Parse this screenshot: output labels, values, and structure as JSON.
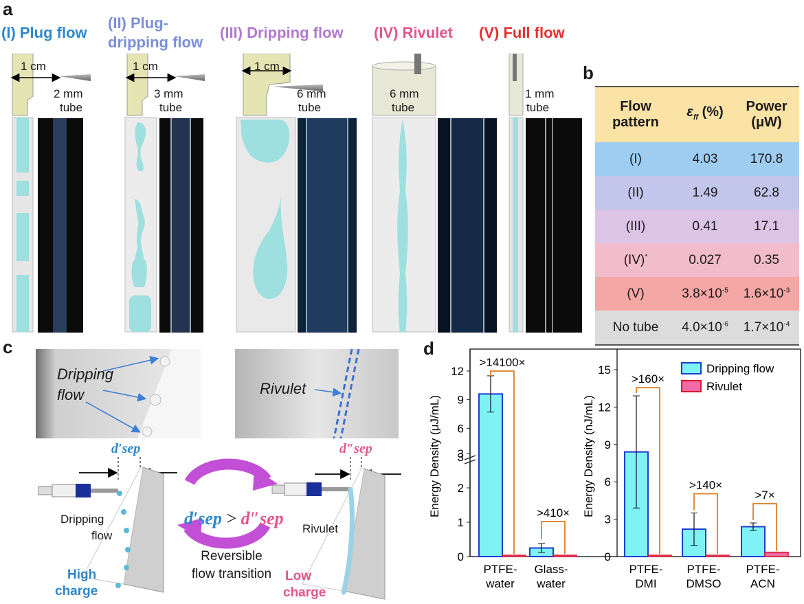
{
  "panel_a": {
    "letter": "a",
    "patterns": [
      {
        "title": "(I) Plug flow",
        "dimension": "1 cm",
        "tube_line1": "2 mm",
        "tube_line2": "tube",
        "color": "#2f86c8"
      },
      {
        "title_line1": "(II) Plug-",
        "title_line2": "dripping flow",
        "dimension": "1 cm",
        "tube_line1": "3 mm",
        "tube_line2": "tube",
        "color": "#7a8fd8"
      },
      {
        "title": "(III) Dripping flow",
        "dimension": "1 cm",
        "tube_line1": "6 mm",
        "tube_line2": "tube",
        "color": "#b07ad0"
      },
      {
        "title": "(IV) Rivulet",
        "tube_line1": "6 mm",
        "tube_line2": "tube",
        "color": "#e0568f"
      },
      {
        "title": "(V) Full flow",
        "tube_line1": "1 mm",
        "tube_line2": "tube",
        "color": "#e53030"
      }
    ]
  },
  "panel_b": {
    "letter": "b",
    "header": {
      "col1_line1": "Flow",
      "col1_line2": "pattern",
      "col2_main": "ε",
      "col2_sub": "ff",
      "col2_unit": " (%)",
      "col3_line1": "Power",
      "col3_line2": "(μW)"
    },
    "rows": [
      {
        "pattern": "(I)",
        "eff": "4.03",
        "power": "170.8",
        "bg": "#9fcdf2"
      },
      {
        "pattern": "(II)",
        "eff": "1.49",
        "power": "62.8",
        "bg": "#c2c6ec"
      },
      {
        "pattern": "(III)",
        "eff": "0.41",
        "power": "17.1",
        "bg": "#dcc4e6"
      },
      {
        "pattern": "(IV)",
        "pattern_sup": "*",
        "eff": "0.027",
        "power": "0.35",
        "bg": "#f2bccb"
      },
      {
        "pattern": "(V)",
        "eff_base": "3.8×10",
        "eff_exp": "-5",
        "power_base": "1.6×10",
        "power_exp": "-3",
        "bg": "#f4a7a4"
      },
      {
        "pattern": "No tube",
        "eff_base": "4.0×10",
        "eff_exp": "-6",
        "power_base": "1.7×10",
        "power_exp": "-4",
        "bg": "#dcdcdc"
      }
    ]
  },
  "panel_c": {
    "letter": "c",
    "photo1_label_line1": "Dripping",
    "photo1_label_line2": "flow",
    "photo2_label": "Rivulet",
    "dsep_left": "d′sep",
    "dsep_right": "d″sep",
    "compare_left": "d′sep",
    "compare_op": ">",
    "compare_right": "d″sep",
    "left_flow_line1": "Dripping",
    "left_flow_line2": "flow",
    "right_flow": "Rivulet",
    "left_charge_line1": "High",
    "left_charge_line2": "charge",
    "right_charge_line1": "Low",
    "right_charge_line2": "charge",
    "center_line1": "Reversible",
    "center_line2": "flow transition",
    "colors": {
      "high": "#2f86c8",
      "low": "#e0568f",
      "arrows": "#c24fd6"
    }
  },
  "panel_d": {
    "letter": "d",
    "chart_data": [
      {
        "type": "bar",
        "ylabel": "Energy Density (μJ/mL)",
        "ylim": [
          0,
          12
        ],
        "broken_axis": true,
        "lower_ticks": [
          "0",
          "1",
          "2",
          "3"
        ],
        "upper_ticks": [
          "3",
          "6",
          "9",
          "12"
        ],
        "categories": [
          "PTFE-water",
          "Glass-water"
        ],
        "category_lines": [
          [
            "PTFE-",
            "water"
          ],
          [
            "Glass-",
            "water"
          ]
        ],
        "series": [
          {
            "name": "Dripping flow",
            "values": [
              9.6,
              0.25
            ],
            "errors": [
              1.9,
              0.13
            ]
          },
          {
            "name": "Rivulet",
            "values": [
              0.0007,
              0.0006
            ]
          }
        ],
        "annotations": [
          ">14100×",
          ">410×"
        ]
      },
      {
        "type": "bar",
        "ylabel": "Energy Density (nJ/mL)",
        "ylim": [
          0,
          15
        ],
        "ticks": [
          "0",
          "3",
          "6",
          "9",
          "12",
          "15"
        ],
        "categories": [
          "PTFE-DMI",
          "PTFE-DMSO",
          "PTFE-ACN"
        ],
        "category_lines": [
          [
            "PTFE-",
            "DMI"
          ],
          [
            "PTFE-",
            "DMSO"
          ],
          [
            "PTFE-",
            "ACN"
          ]
        ],
        "series": [
          {
            "name": "Dripping flow",
            "values": [
              8.4,
              2.2,
              2.4
            ],
            "errors": [
              4.5,
              1.3,
              0.3
            ]
          },
          {
            "name": "Rivulet",
            "values": [
              0.05,
              0.015,
              0.35
            ]
          }
        ],
        "annotations": [
          ">160×",
          ">140×",
          ">7×"
        ],
        "legend": "top-right"
      }
    ],
    "colors": {
      "dripping_fill": "#7ef2f4",
      "dripping_edge": "#1a3ed0",
      "rivulet_fill": "#f06aa6",
      "rivulet_edge": "#d8182e",
      "bracket": "#e08a3c"
    }
  }
}
